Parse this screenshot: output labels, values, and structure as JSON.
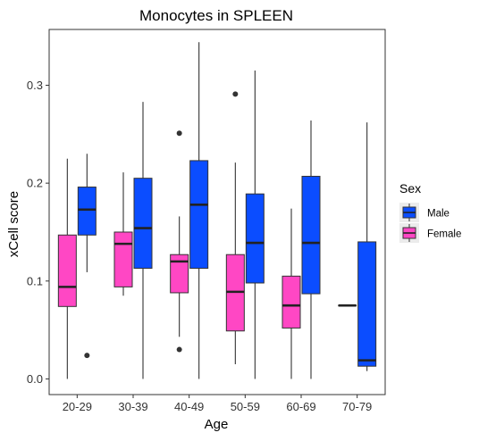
{
  "chart_data": {
    "type": "boxplot",
    "title": "Monocytes in SPLEEN",
    "xlabel": "Age",
    "ylabel": "xCell score",
    "categories": [
      "20-29",
      "30-39",
      "40-49",
      "50-59",
      "60-69",
      "70-79"
    ],
    "yticks": [
      0.0,
      0.1,
      0.2,
      0.3
    ],
    "ytick_labels": [
      "0.0",
      "0.1",
      "0.2",
      "0.3"
    ],
    "ylim": [
      -0.016,
      0.357
    ],
    "grid": false,
    "legend": {
      "title": "Sex",
      "placement": "right",
      "entries": [
        {
          "name": "Male",
          "color": "#0b4dff"
        },
        {
          "name": "Female",
          "color": "#ff47c4"
        }
      ]
    },
    "series": [
      {
        "name": "Female",
        "color": "#ff47c4",
        "boxes": [
          {
            "category": "20-29",
            "min": 0.0,
            "q1": 0.074,
            "median": 0.094,
            "q3": 0.147,
            "max": 0.225,
            "outliers": []
          },
          {
            "category": "30-39",
            "min": 0.085,
            "q1": 0.094,
            "median": 0.138,
            "q3": 0.15,
            "max": 0.211,
            "outliers": []
          },
          {
            "category": "40-49",
            "min": 0.043,
            "q1": 0.088,
            "median": 0.12,
            "q3": 0.127,
            "max": 0.166,
            "outliers": [
              0.251,
              0.03
            ]
          },
          {
            "category": "50-59",
            "min": 0.015,
            "q1": 0.049,
            "median": 0.089,
            "q3": 0.127,
            "max": 0.221,
            "outliers": [
              0.291
            ]
          },
          {
            "category": "60-69",
            "min": 0.0,
            "q1": 0.052,
            "median": 0.075,
            "q3": 0.105,
            "max": 0.174,
            "outliers": []
          },
          {
            "category": "70-79",
            "min": 0.075,
            "q1": 0.075,
            "median": 0.075,
            "q3": 0.075,
            "max": 0.075,
            "outliers": []
          }
        ]
      },
      {
        "name": "Male",
        "color": "#0b4dff",
        "boxes": [
          {
            "category": "20-29",
            "min": 0.109,
            "q1": 0.147,
            "median": 0.173,
            "q3": 0.196,
            "max": 0.23,
            "outliers": [
              0.024
            ]
          },
          {
            "category": "30-39",
            "min": 0.0,
            "q1": 0.113,
            "median": 0.154,
            "q3": 0.205,
            "max": 0.283,
            "outliers": []
          },
          {
            "category": "40-49",
            "min": 0.0,
            "q1": 0.113,
            "median": 0.178,
            "q3": 0.223,
            "max": 0.344,
            "outliers": []
          },
          {
            "category": "50-59",
            "min": 0.0,
            "q1": 0.098,
            "median": 0.139,
            "q3": 0.189,
            "max": 0.315,
            "outliers": []
          },
          {
            "category": "60-69",
            "min": 0.0,
            "q1": 0.087,
            "median": 0.139,
            "q3": 0.207,
            "max": 0.264,
            "outliers": []
          },
          {
            "category": "70-79",
            "min": 0.008,
            "q1": 0.013,
            "median": 0.019,
            "q3": 0.14,
            "max": 0.262,
            "outliers": []
          }
        ]
      }
    ]
  }
}
